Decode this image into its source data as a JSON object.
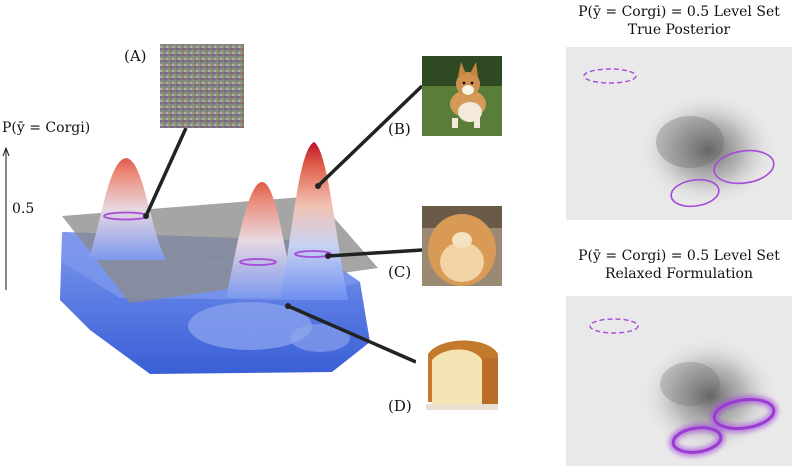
{
  "figure": {
    "y_axis_label": "P(ȳ = Corgi)",
    "y_tick": "0.5",
    "labels": {
      "a": "(A)",
      "b": "(B)",
      "c": "(C)",
      "d": "(D)"
    },
    "panels": [
      {
        "title_line1": "P(ȳ = Corgi) = 0.5 Level Set",
        "title_line2": "True Posterior"
      },
      {
        "title_line1": "P(ȳ = Corgi) = 0.5 Level Set",
        "title_line2": "Relaxed Formulation"
      }
    ],
    "colors": {
      "peak_top": "#c8102e",
      "surface_low": "#4a6fe3",
      "plane": "#8c8c8c",
      "level_set": "#a64bd9",
      "panel_bg": "#e9e9e9"
    },
    "images": {
      "a": "noise-image",
      "b": "corgi-puppy-photo",
      "c": "corgi-rear-photo",
      "d": "bread-loaf-photo"
    }
  }
}
